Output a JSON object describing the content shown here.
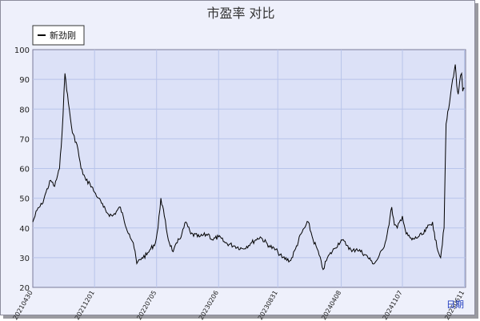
{
  "chart_data": {
    "type": "line",
    "title": "市盈率 对比",
    "xlabel": "日期",
    "ylabel": "",
    "ylim": [
      20,
      100
    ],
    "yticks": [
      20,
      30,
      40,
      50,
      60,
      70,
      80,
      90,
      100
    ],
    "xticks": [
      "20210430",
      "20211201",
      "20220705",
      "20230206",
      "20230831",
      "20240408",
      "20241107",
      "20250611"
    ],
    "grid": true,
    "legend_position": "top-left",
    "colors": {
      "line": "#000000",
      "plot_bg": "#dce1f7",
      "grid": "#b8c4ea",
      "frame_bg": "#eef0fb"
    },
    "series": [
      {
        "name": "新劲刚",
        "x": [
          "2021-04-30",
          "2021-05-15",
          "2021-06-01",
          "2021-06-15",
          "2021-07-01",
          "2021-07-15",
          "2021-08-01",
          "2021-08-10",
          "2021-08-20",
          "2021-09-01",
          "2021-09-15",
          "2021-10-01",
          "2021-10-15",
          "2021-11-01",
          "2021-11-15",
          "2021-12-01",
          "2021-12-15",
          "2022-01-01",
          "2022-01-15",
          "2022-02-01",
          "2022-03-01",
          "2022-03-15",
          "2022-04-01",
          "2022-04-15",
          "2022-04-27",
          "2022-05-15",
          "2022-06-01",
          "2022-06-15",
          "2022-07-01",
          "2022-07-10",
          "2022-07-20",
          "2022-08-01",
          "2022-08-15",
          "2022-09-01",
          "2022-09-15",
          "2022-10-01",
          "2022-10-15",
          "2022-11-01",
          "2022-12-01",
          "2023-01-01",
          "2023-01-15",
          "2023-02-06",
          "2023-03-01",
          "2023-04-01",
          "2023-05-01",
          "2023-06-01",
          "2023-06-15",
          "2023-07-01",
          "2023-08-01",
          "2023-08-31",
          "2023-09-15",
          "2023-10-15",
          "2023-11-01",
          "2023-11-20",
          "2023-12-15",
          "2024-01-01",
          "2024-01-15",
          "2024-02-05",
          "2024-02-20",
          "2024-03-15",
          "2024-04-08",
          "2024-05-01",
          "2024-05-15",
          "2024-06-01",
          "2024-07-01",
          "2024-07-20",
          "2024-08-01",
          "2024-08-15",
          "2024-09-01",
          "2024-09-15",
          "2024-10-01",
          "2024-10-10",
          "2024-10-20",
          "2024-11-07",
          "2024-11-20",
          "2024-12-10",
          "2025-01-01",
          "2025-01-20",
          "2025-02-01",
          "2025-02-20",
          "2025-03-01",
          "2025-03-20",
          "2025-04-01",
          "2025-04-08",
          "2025-04-20",
          "2025-05-01",
          "2025-05-10",
          "2025-05-15",
          "2025-05-20",
          "2025-05-25",
          "2025-06-01",
          "2025-06-05",
          "2025-06-11"
        ],
        "y": [
          42,
          46,
          48,
          52,
          56,
          54,
          60,
          72,
          92,
          82,
          72,
          68,
          60,
          56,
          55,
          52,
          50,
          47,
          45,
          44,
          47,
          42,
          38,
          35,
          28,
          30,
          31,
          33,
          35,
          40,
          50,
          44,
          36,
          32,
          35,
          38,
          42,
          38,
          37,
          38,
          36,
          37,
          35,
          34,
          33,
          35,
          36,
          37,
          34,
          32,
          30,
          29,
          33,
          38,
          42,
          36,
          33,
          26,
          30,
          33,
          36,
          34,
          32,
          33,
          31,
          29,
          28,
          30,
          33,
          38,
          47,
          41,
          40,
          44,
          38,
          36,
          37,
          38,
          40,
          42,
          36,
          30,
          40,
          75,
          82,
          90,
          95,
          88,
          85,
          89,
          92,
          86,
          87
        ]
      }
    ]
  }
}
